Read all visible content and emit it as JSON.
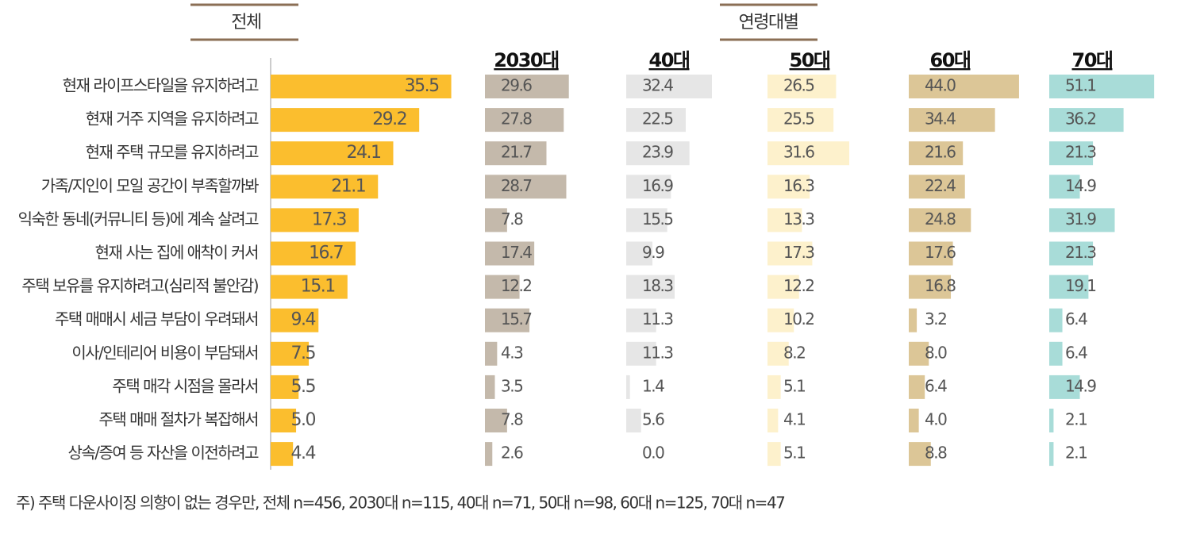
{
  "group_label": "연령대별",
  "note": "주) 주택 다운사이징 의향이 없는 경우만, 전체 n=456, 2030대 n=115, 40대 n=71, 50대 n=98, 60대 n=125, 70대 n=47",
  "chart_data": [
    {
      "type": "bar",
      "title": "전체",
      "color": "#fbbe2e",
      "xlim": [
        0,
        39
      ],
      "categories": [
        "현재 라이프스타일을 유지하려고",
        "현재 거주 지역을 유지하려고",
        "현재 주택 규모를 유지하려고",
        "가족/지인이 모일 공간이 부족할까봐",
        "익숙한 동네(커뮤니티 등)에 계속 살려고",
        "현재 사는 집에 애착이 커서",
        "주택 보유를 유지하려고(심리적 불안감)",
        "주택 매매시 세금 부담이 우려돼서",
        "이사/인테리어 비용이 부담돼서",
        "주택 매각 시점을 몰라서",
        "주택 매매 절차가 복잡해서",
        "상속/증여 등 자산을 이전하려고"
      ],
      "values": [
        35.5,
        29.2,
        24.1,
        21.1,
        17.3,
        16.7,
        15.1,
        9.4,
        7.5,
        5.5,
        5.0,
        4.4
      ],
      "value_labels": [
        "35.5",
        "29.2",
        "24.1",
        "21.1",
        "17.3",
        "16.7",
        "15.1",
        "9.4",
        "7.5",
        "5.5",
        "5.0",
        "4.4"
      ]
    },
    {
      "type": "bar",
      "title": "2030대",
      "color": "#c4b9ab",
      "xlim": [
        0,
        42
      ],
      "values": [
        29.6,
        27.8,
        21.7,
        28.7,
        7.8,
        17.4,
        12.2,
        15.7,
        4.3,
        3.5,
        7.8,
        2.6
      ]
    },
    {
      "type": "bar",
      "title": "40대",
      "color": "#e6e6e6",
      "xlim": [
        0,
        45
      ],
      "values": [
        32.4,
        22.5,
        23.9,
        16.9,
        15.5,
        9.9,
        18.3,
        11.3,
        11.3,
        1.4,
        5.6,
        0.0
      ],
      "value_labels": [
        "32.4",
        "22.5",
        "23.9",
        "16.9",
        "15.5",
        "9.9",
        "18.3",
        "11.3",
        "11.3",
        "1.4",
        "5.6",
        "0.0"
      ]
    },
    {
      "type": "bar",
      "title": "50대",
      "color": "#fdf1cc",
      "xlim": [
        0,
        46
      ],
      "values": [
        26.5,
        25.5,
        31.6,
        16.3,
        13.3,
        17.3,
        12.2,
        10.2,
        8.2,
        5.1,
        4.1,
        5.1
      ]
    },
    {
      "type": "bar",
      "title": "60대",
      "color": "#dcc697",
      "xlim": [
        0,
        47.5
      ],
      "values": [
        44.0,
        34.4,
        21.6,
        22.4,
        24.8,
        17.6,
        16.8,
        3.2,
        8.0,
        6.4,
        4.0,
        8.8
      ],
      "value_labels": [
        "44.0",
        "34.4",
        "21.6",
        "22.4",
        "24.8",
        "17.6",
        "16.8",
        "3.2",
        "8.0",
        "6.4",
        "4.0",
        "8.8"
      ]
    },
    {
      "type": "bar",
      "title": "70대",
      "color": "#a8dcd8",
      "xlim": [
        0,
        58
      ],
      "values": [
        51.1,
        36.2,
        21.3,
        14.9,
        31.9,
        21.3,
        19.1,
        6.4,
        6.4,
        14.9,
        2.1,
        2.1
      ]
    }
  ]
}
